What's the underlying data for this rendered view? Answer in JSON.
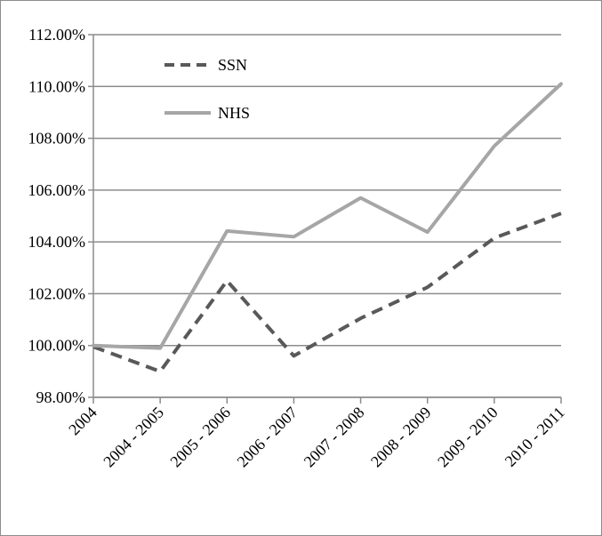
{
  "chart_data": {
    "type": "line",
    "title": "",
    "xlabel": "",
    "ylabel": "",
    "categories": [
      "2004",
      "2004 - 2005",
      "2005 - 2006",
      "2006 - 2007",
      "2007 - 2008",
      "2008 - 2009",
      "2009 - 2010",
      "2010 - 2011"
    ],
    "ylim": [
      98,
      112
    ],
    "yticks": [
      98,
      100,
      102,
      104,
      106,
      108,
      110,
      112
    ],
    "ytick_labels": [
      "98.00%",
      "100.00%",
      "102.00%",
      "104.00%",
      "106.00%",
      "108.00%",
      "110.00%",
      "112.00%"
    ],
    "grid": true,
    "legend_position": "top-left",
    "series": [
      {
        "name": "SSN",
        "style": "dashed",
        "color": "#595959",
        "values": [
          99.95,
          99.0,
          102.5,
          99.6,
          101.05,
          102.25,
          104.15,
          105.1
        ]
      },
      {
        "name": "NHS",
        "style": "solid",
        "color": "#a6a6a6",
        "values": [
          100.0,
          99.9,
          104.42,
          104.2,
          105.7,
          104.38,
          107.7,
          110.1
        ]
      }
    ]
  }
}
